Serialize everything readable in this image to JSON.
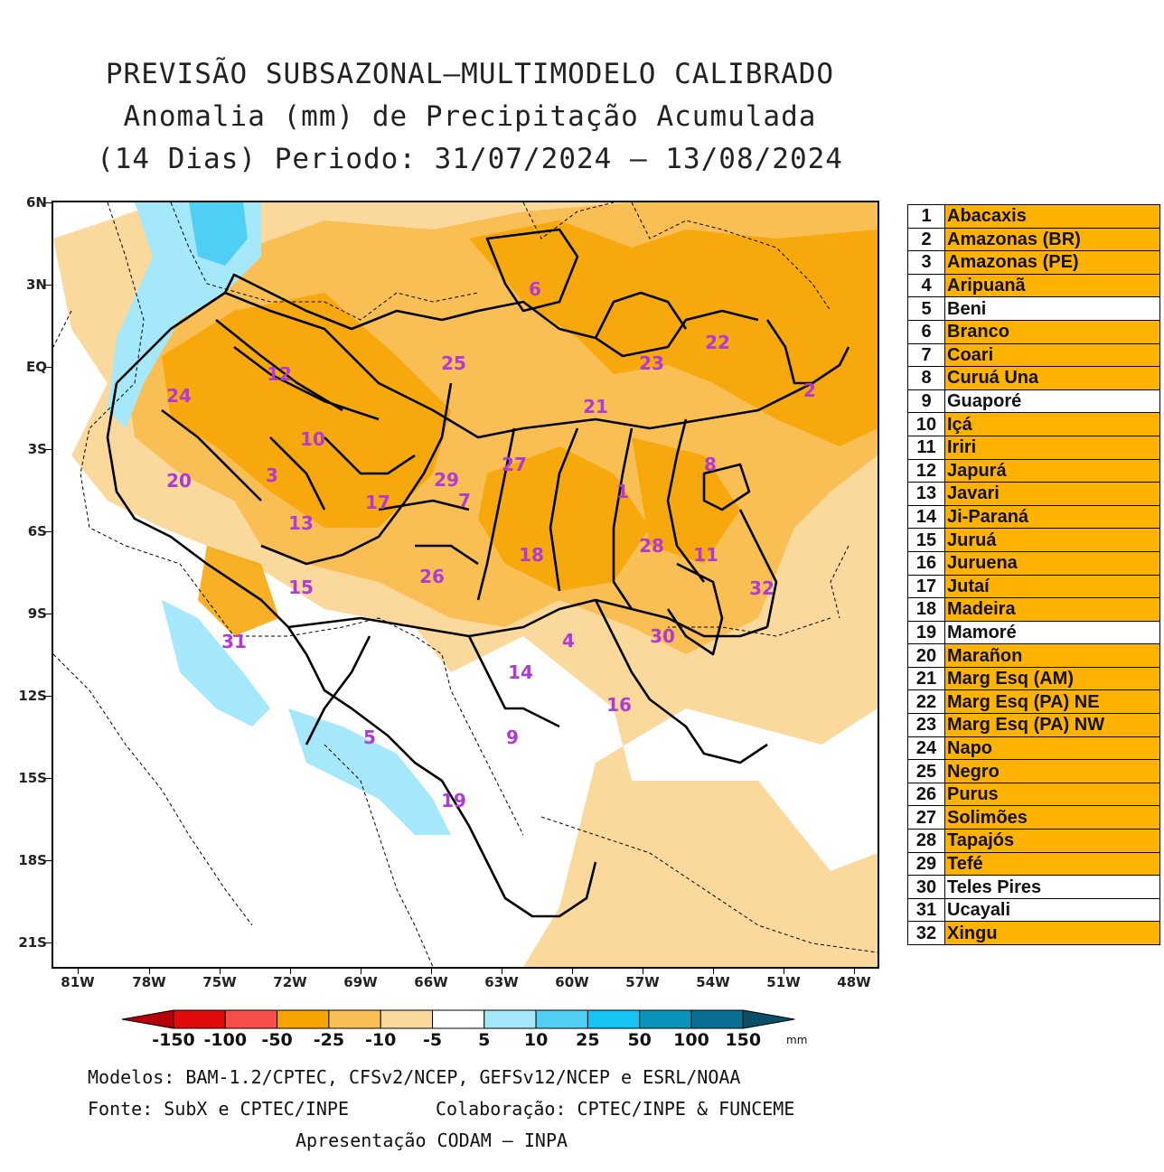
{
  "title": {
    "line1": "PREVISÃO SUBSAZONAL—MULTIMODELO CALIBRADO",
    "line2": "Anomalia (mm) de Precipitação Acumulada",
    "line3": "(14 Dias) Periodo: 31/07/2024 — 13/08/2024"
  },
  "axes": {
    "lat_labels": [
      "6N",
      "3N",
      "EQ",
      "3S",
      "6S",
      "9S",
      "12S",
      "15S",
      "18S",
      "21S"
    ],
    "lon_labels": [
      "81W",
      "78W",
      "75W",
      "72W",
      "69W",
      "66W",
      "63W",
      "60W",
      "57W",
      "54W",
      "51W",
      "48W"
    ]
  },
  "colors": {
    "orange_dark": "#f7a300",
    "orange_mid": "#f9bf55",
    "orange_light": "#fbd99c",
    "blue_light": "#a5e8fb",
    "blue_mid": "#4fcff4",
    "blue_dark": "#1cb6ec",
    "basin_number": "#b03ad6",
    "legend_fill": "#ffb300"
  },
  "basin_numbers": [
    "1",
    "2",
    "3",
    "4",
    "5",
    "6",
    "7",
    "8",
    "9",
    "10",
    "11",
    "12",
    "13",
    "14",
    "15",
    "16",
    "17",
    "18",
    "19",
    "20",
    "21",
    "22",
    "23",
    "24",
    "25",
    "26",
    "27",
    "28",
    "29",
    "30",
    "31",
    "32"
  ],
  "legend": [
    {
      "num": "1",
      "name": "Abacaxis",
      "highlight": true
    },
    {
      "num": "2",
      "name": "Amazonas (BR)",
      "highlight": true
    },
    {
      "num": "3",
      "name": "Amazonas (PE)",
      "highlight": true
    },
    {
      "num": "4",
      "name": "Aripuanã",
      "highlight": true
    },
    {
      "num": "5",
      "name": "Beni",
      "highlight": false
    },
    {
      "num": "6",
      "name": "Branco",
      "highlight": true
    },
    {
      "num": "7",
      "name": "Coari",
      "highlight": true
    },
    {
      "num": "8",
      "name": "Curuá Una",
      "highlight": true
    },
    {
      "num": "9",
      "name": "Guaporé",
      "highlight": false
    },
    {
      "num": "10",
      "name": "Içá",
      "highlight": true
    },
    {
      "num": "11",
      "name": "Iriri",
      "highlight": true
    },
    {
      "num": "12",
      "name": "Japurá",
      "highlight": true
    },
    {
      "num": "13",
      "name": "Javari",
      "highlight": true
    },
    {
      "num": "14",
      "name": "Ji-Paraná",
      "highlight": true
    },
    {
      "num": "15",
      "name": "Juruá",
      "highlight": true
    },
    {
      "num": "16",
      "name": "Juruena",
      "highlight": true
    },
    {
      "num": "17",
      "name": "Jutaí",
      "highlight": true
    },
    {
      "num": "18",
      "name": "Madeira",
      "highlight": true
    },
    {
      "num": "19",
      "name": "Mamoré",
      "highlight": false
    },
    {
      "num": "20",
      "name": "Marañon",
      "highlight": true
    },
    {
      "num": "21",
      "name": "Marg Esq (AM)",
      "highlight": true
    },
    {
      "num": "22",
      "name": "Marg Esq (PA) NE",
      "highlight": true
    },
    {
      "num": "23",
      "name": "Marg Esq (PA) NW",
      "highlight": true
    },
    {
      "num": "24",
      "name": "Napo",
      "highlight": true
    },
    {
      "num": "25",
      "name": "Negro",
      "highlight": true
    },
    {
      "num": "26",
      "name": "Purus",
      "highlight": true
    },
    {
      "num": "27",
      "name": "Solimões",
      "highlight": true
    },
    {
      "num": "28",
      "name": "Tapajós",
      "highlight": true
    },
    {
      "num": "29",
      "name": "Tefé",
      "highlight": true
    },
    {
      "num": "30",
      "name": "Teles Pires",
      "highlight": false
    },
    {
      "num": "31",
      "name": "Ucayali",
      "highlight": false
    },
    {
      "num": "32",
      "name": "Xingu",
      "highlight": true
    }
  ],
  "colorbar": {
    "labels": [
      "-150",
      "-100",
      "-50",
      "-25",
      "-10",
      "-5",
      "5",
      "10",
      "25",
      "50",
      "100",
      "150"
    ],
    "unit": "mm",
    "colors": [
      "#b3000b",
      "#e30a0a",
      "#f84d4d",
      "#f7a300",
      "#f9bf55",
      "#fbd99c",
      "#ffffff",
      "#a5e8fb",
      "#4fcff4",
      "#14c4f4",
      "#0a93b8",
      "#0a6f94",
      "#0a4f6a"
    ]
  },
  "credits": {
    "models": "Modelos: BAM-1.2/CPTEC, CFSv2/NCEP, GEFSv12/NCEP e ESRL/NOAA",
    "source": "Fonte: SubX e CPTEC/INPE",
    "collab": "Colaboração: CPTEC/INPE & FUNCEME",
    "presentation": "Apresentação CODAM — INPA"
  }
}
